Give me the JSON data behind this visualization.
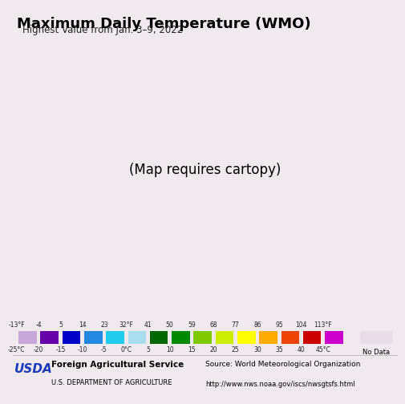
{
  "title": "Maximum Daily Temperature (WMO)",
  "subtitle": "Highest Value from Jan. 3–9, 2022",
  "background_color": "#f0eaee",
  "map_ocean_color": "#b8e8f0",
  "colorbar": {
    "fahrenheit_labels": [
      "-13°F",
      "-4",
      "5",
      "14",
      "23",
      "32°F",
      "41",
      "50",
      "59",
      "68",
      "77",
      "86",
      "95",
      "104",
      "113°F"
    ],
    "celsius_labels": [
      "-25°C",
      "-20",
      "-15",
      "-10",
      "-5",
      "0°C",
      "5",
      "10",
      "15",
      "20",
      "25",
      "30",
      "35",
      "40",
      "45°C"
    ],
    "colors": [
      "#c8a8d8",
      "#6600aa",
      "#0000c8",
      "#2288e0",
      "#22ccee",
      "#aaddee",
      "#006600",
      "#008800",
      "#80c800",
      "#ccee00",
      "#ffff00",
      "#ffaa00",
      "#ee4400",
      "#cc0000",
      "#cc00cc"
    ],
    "no_data_color": "#e8dce8",
    "no_data_label": "No Data"
  },
  "map_extent": [
    124.0,
    131.5,
    33.0,
    43.5
  ],
  "region_colors": {
    "china_manchuria": "#e8dce8",
    "russia": "#e8dce8",
    "japan": "#e8dce8",
    "nk_northwest": "#006600",
    "nk_northcentral": "#006600",
    "nk_northeast_light": "#aaddee",
    "nk_coastal_east": "#80c800",
    "sk_north": "#006600",
    "sk_central": "#80c800",
    "sk_south": "#ccee00"
  },
  "footer_left_usda": "USDA",
  "footer_left_line1": "Foreign Agricultural Service",
  "footer_left_line2": "U.S. DEPARTMENT OF AGRICULTURE",
  "footer_right_line1": "Source: World Meteorological Organization",
  "footer_right_line2": "http://www.nws.noaa.gov/iscs/nwsgtsfs.html",
  "title_fontsize": 13,
  "subtitle_fontsize": 8.5,
  "fig_width": 4.8,
  "fig_height": 4.85
}
